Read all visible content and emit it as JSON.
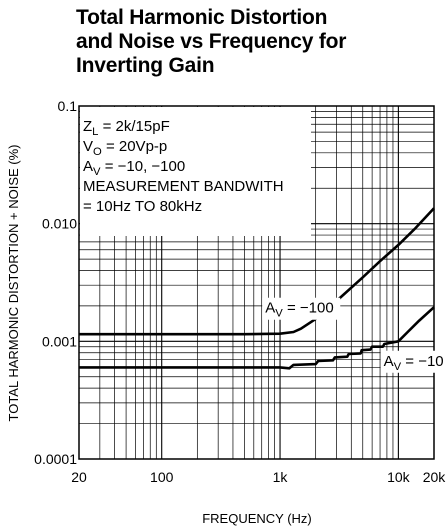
{
  "title": {
    "lines": [
      "Total Harmonic Distortion",
      "and Noise vs Frequency for",
      "Inverting Gain"
    ]
  },
  "chart_data": {
    "type": "line",
    "title": "Total Harmonic Distortion and Noise vs Frequency for Inverting Gain",
    "xlabel": "FREQUENCY (Hz)",
    "ylabel": "TOTAL HARMONIC DISTORTION + NOISE (%)",
    "xscale": "log",
    "yscale": "log",
    "xlim": [
      20,
      20000
    ],
    "ylim": [
      0.0001,
      0.1
    ],
    "grid": true,
    "xticks": [
      {
        "value": 20,
        "label": "20"
      },
      {
        "value": 100,
        "label": "100"
      },
      {
        "value": 1000,
        "label": "1k"
      },
      {
        "value": 10000,
        "label": "10k"
      },
      {
        "value": 20000,
        "label": "20k"
      }
    ],
    "yticks": [
      {
        "value": 0.1,
        "label": "0.1"
      },
      {
        "value": 0.01,
        "label": "0.010"
      },
      {
        "value": 0.001,
        "label": "0.001"
      },
      {
        "value": 0.0001,
        "label": "0.0001"
      }
    ],
    "conditions": [
      {
        "main": "Z",
        "sub": "L",
        "rest": " = 2k/15pF"
      },
      {
        "main": "V",
        "sub": "O",
        "rest": " = 20Vp-p"
      },
      {
        "main": "A",
        "sub": "V",
        "rest": " = −10, −100"
      },
      {
        "main": "MEASUREMENT BANDWITH",
        "sub": "",
        "rest": ""
      },
      {
        "main": "  = 10Hz TO 80kHz",
        "sub": "",
        "rest": ""
      }
    ],
    "series": [
      {
        "label_main": "A",
        "label_sub": "V",
        "label_rest": " = −100",
        "x": [
          20,
          50,
          100,
          200,
          500,
          1000,
          1300,
          1500,
          2000,
          3000,
          5000,
          7000,
          10000,
          14000,
          20000
        ],
        "y": [
          0.00115,
          0.00115,
          0.00115,
          0.00115,
          0.00115,
          0.00116,
          0.0012,
          0.00128,
          0.00155,
          0.0022,
          0.0035,
          0.0048,
          0.0066,
          0.0092,
          0.0135
        ]
      },
      {
        "label_main": "A",
        "label_sub": "V",
        "label_rest": " = −10",
        "x": [
          20,
          100,
          500,
          1000,
          1200,
          1300,
          2000,
          2100,
          2800,
          2900,
          3700,
          3800,
          4800,
          4900,
          5800,
          6000,
          7400,
          7600,
          10000,
          12000,
          15000,
          20000
        ],
        "y": [
          0.0006,
          0.0006,
          0.0006,
          0.0006,
          0.00059,
          0.00063,
          0.00064,
          0.00068,
          0.00069,
          0.00073,
          0.00074,
          0.00078,
          0.00079,
          0.00084,
          0.00085,
          0.0009,
          0.0009,
          0.00095,
          0.001,
          0.0012,
          0.0015,
          0.00195
        ]
      }
    ]
  }
}
